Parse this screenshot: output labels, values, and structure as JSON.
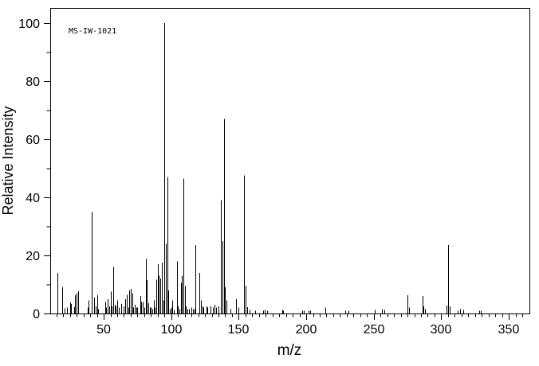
{
  "annotation": "MS-IW-1021",
  "axis": {
    "x_title": "m/z",
    "y_title": "Relative Intensity"
  },
  "colors": {
    "foreground": "#000000",
    "background": "#ffffff"
  },
  "chart_data": {
    "type": "bar",
    "subtype": "mass-spectrum",
    "title": "MS-IW-1021",
    "xlabel": "m/z",
    "ylabel": "Relative Intensity",
    "xlim": [
      10.4,
      365.3
    ],
    "ylim": [
      0,
      100
    ],
    "x_major_ticks": [
      50,
      100,
      150,
      200,
      250,
      300,
      350
    ],
    "x_minor_tick_step": 5,
    "y_major_ticks": [
      0,
      20,
      40,
      60,
      80,
      100
    ],
    "y_minor_tick_step": 10,
    "grid": false,
    "legend": false,
    "peaks": [
      [
        16,
        14
      ],
      [
        19,
        9
      ],
      [
        21,
        1.8
      ],
      [
        23,
        2
      ],
      [
        25,
        3.8
      ],
      [
        26,
        3.3
      ],
      [
        28,
        2.2
      ],
      [
        29,
        6.3
      ],
      [
        30,
        7
      ],
      [
        31,
        7.7
      ],
      [
        38,
        2
      ],
      [
        39,
        4.5
      ],
      [
        41,
        35
      ],
      [
        43,
        5.5
      ],
      [
        44,
        2.5
      ],
      [
        45,
        6.3
      ],
      [
        46,
        1.5
      ],
      [
        51,
        4
      ],
      [
        52,
        2
      ],
      [
        53,
        5
      ],
      [
        54,
        2.5
      ],
      [
        55,
        7.5
      ],
      [
        56,
        2.5
      ],
      [
        57,
        16
      ],
      [
        58,
        3
      ],
      [
        59,
        2.5
      ],
      [
        60,
        4.5
      ],
      [
        61,
        2
      ],
      [
        63,
        3.3
      ],
      [
        65,
        2.5
      ],
      [
        66,
        5
      ],
      [
        67,
        6.5
      ],
      [
        68,
        2
      ],
      [
        69,
        8
      ],
      [
        70,
        8.5
      ],
      [
        71,
        7
      ],
      [
        72,
        2
      ],
      [
        73,
        3
      ],
      [
        74,
        2
      ],
      [
        75,
        2
      ],
      [
        77,
        6
      ],
      [
        78,
        4
      ],
      [
        79,
        4
      ],
      [
        80,
        2
      ],
      [
        81,
        18.7
      ],
      [
        82,
        11.5
      ],
      [
        83,
        3.5
      ],
      [
        84,
        2
      ],
      [
        85,
        2
      ],
      [
        86,
        1.5
      ],
      [
        87,
        4.5
      ],
      [
        88,
        2
      ],
      [
        89,
        11.7
      ],
      [
        90,
        17
      ],
      [
        91,
        13
      ],
      [
        92,
        12
      ],
      [
        93,
        17.5
      ],
      [
        94,
        4.5
      ],
      [
        95,
        100
      ],
      [
        96,
        24
      ],
      [
        97,
        47
      ],
      [
        98,
        8
      ],
      [
        99,
        1.5
      ],
      [
        100,
        2
      ],
      [
        101,
        4.5
      ],
      [
        102,
        1.2
      ],
      [
        104,
        18
      ],
      [
        105,
        2.5
      ],
      [
        106,
        1.5
      ],
      [
        107,
        10.5
      ],
      [
        108,
        13
      ],
      [
        109,
        46.5
      ],
      [
        110,
        9.5
      ],
      [
        111,
        2.5
      ],
      [
        112,
        1.5
      ],
      [
        113,
        1.5
      ],
      [
        115,
        2
      ],
      [
        116,
        1.5
      ],
      [
        117,
        1.5
      ],
      [
        118,
        23.5
      ],
      [
        121,
        14
      ],
      [
        122,
        4.5
      ],
      [
        123,
        2.5
      ],
      [
        124,
        2
      ],
      [
        126,
        2.5
      ],
      [
        127,
        2
      ],
      [
        129,
        2.5
      ],
      [
        131,
        2
      ],
      [
        132,
        3
      ],
      [
        133,
        2
      ],
      [
        135,
        2.5
      ],
      [
        137,
        39
      ],
      [
        138,
        25
      ],
      [
        139,
        67
      ],
      [
        140,
        9
      ],
      [
        141,
        4.5
      ],
      [
        144,
        1.5
      ],
      [
        148,
        5
      ],
      [
        150,
        2
      ],
      [
        154,
        47.5
      ],
      [
        155,
        9.5
      ],
      [
        156,
        2.2
      ],
      [
        158,
        1.2
      ],
      [
        162,
        1
      ],
      [
        168,
        1
      ],
      [
        169,
        1.2
      ],
      [
        171,
        1
      ],
      [
        182,
        1.3
      ],
      [
        183,
        1
      ],
      [
        197,
        1
      ],
      [
        198,
        1
      ],
      [
        202,
        1
      ],
      [
        203,
        1
      ],
      [
        214,
        2
      ],
      [
        229,
        1
      ],
      [
        231,
        1
      ],
      [
        251,
        1.2
      ],
      [
        256,
        1.5
      ],
      [
        258,
        1.2
      ],
      [
        275,
        6.3
      ],
      [
        276,
        2
      ],
      [
        286,
        6
      ],
      [
        287,
        2.5
      ],
      [
        288,
        1.5
      ],
      [
        304,
        2.8
      ],
      [
        305,
        23.5
      ],
      [
        306,
        2.5
      ],
      [
        312,
        1
      ],
      [
        314,
        1.5
      ],
      [
        316,
        1.3
      ],
      [
        328,
        1
      ],
      [
        329,
        1
      ]
    ]
  }
}
